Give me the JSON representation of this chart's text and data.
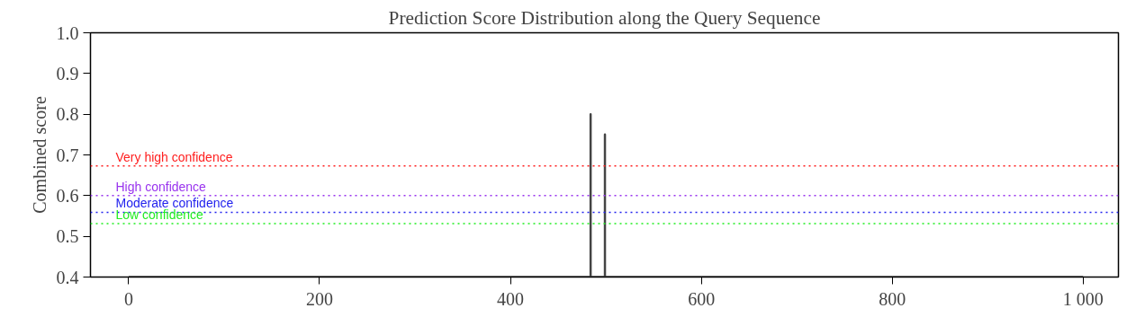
{
  "chart_data": {
    "type": "line",
    "title": "Prediction Score Distribution along the Query Sequence",
    "ylabel": "Combined score",
    "x": [
      0,
      484,
      484,
      484,
      499,
      499,
      499,
      1000
    ],
    "series": [
      {
        "color": "#444444",
        "values": [
          0.4,
          0.4,
          0.8,
          0.4,
          0.4,
          0.75,
          0.4,
          0.4
        ]
      }
    ],
    "xlim": [
      -40,
      1037
    ],
    "ylim": [
      0.4,
      1.0
    ],
    "xticks": [
      0,
      200,
      400,
      600,
      800,
      {
        "value": 1000,
        "label": "1 000"
      }
    ],
    "yticks": [
      0.4,
      0.5,
      0.6,
      0.7,
      0.8,
      0.9,
      {
        "value": 1.0,
        "label": "1.0"
      }
    ],
    "ref_lines": [
      {
        "axis": "y",
        "value": 0.673,
        "label": "Very high confidence",
        "color": "#ff2020",
        "line_style": "dotted"
      },
      {
        "axis": "y",
        "value": 0.6,
        "label": "High confidence",
        "color": "#9933ee",
        "line_style": "dotted"
      },
      {
        "axis": "y",
        "value": 0.559,
        "label": "Moderate confidence",
        "color": "#2222ee",
        "line_style": "dotted"
      },
      {
        "axis": "y",
        "value": 0.531,
        "label": "Low confidence",
        "color": "#22ee22",
        "line_style": "dotted"
      }
    ],
    "grid": false,
    "marker": "none",
    "line_style": "solid"
  }
}
